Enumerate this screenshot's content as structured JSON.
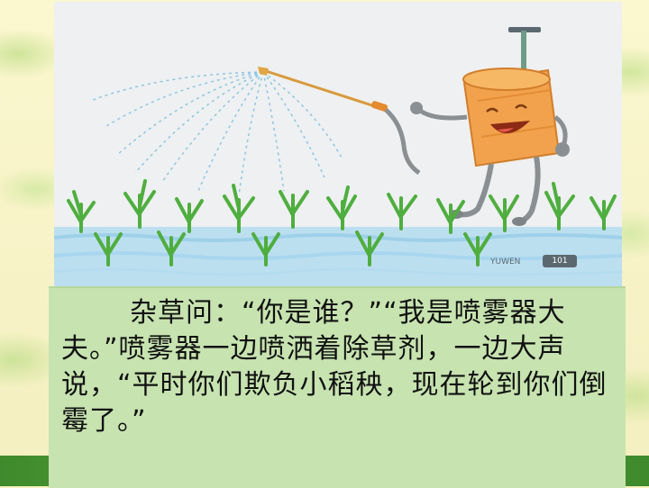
{
  "illustration": {
    "watermark_text": "YUWEN",
    "page_tag": "101"
  },
  "story": {
    "paragraph": "杂草问：“你是谁？”“我是喷雾器大夫。”喷雾器一边喷洒着除草剂，一边大声说，“平时你们欺负小稻秧，现在轮到你们倒霉了。”"
  },
  "colors": {
    "panel_bg": "#c7e3b0",
    "bottom_strip": "#4e9a34",
    "sprayer_body": "#f2a24d",
    "rice_green": "#4fae3f"
  }
}
